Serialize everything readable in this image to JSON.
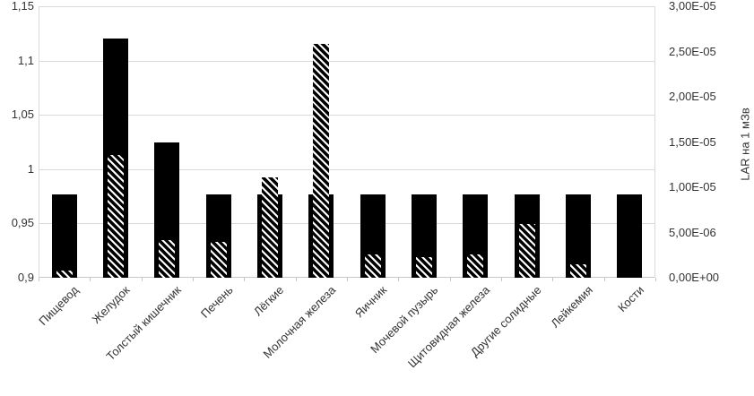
{
  "chart_data": {
    "type": "bar",
    "title": "",
    "categories": [
      "Пищевод",
      "Желудок",
      "Толстый кишечник",
      "Печень",
      "Лёгкие",
      "Молочная железа",
      "Яичник",
      "Мочевой пузырь",
      "Щитовидная железа",
      "Другие солидные",
      "Лейкемия",
      "Кости"
    ],
    "series": [
      {
        "name": "solid-black-bars",
        "axis": "left",
        "style": "solid",
        "values": [
          0.977,
          1.12,
          1.025,
          0.977,
          0.977,
          0.977,
          0.977,
          0.977,
          0.977,
          0.977,
          0.977,
          0.977
        ]
      },
      {
        "name": "diagonal-hatched-bars",
        "axis": "right",
        "style": "diagonal-hatch",
        "values": [
          8e-07,
          1.36e-05,
          4.2e-06,
          4e-06,
          1.11e-05,
          2.58e-05,
          2.6e-06,
          2.3e-06,
          2.6e-06,
          5.9e-06,
          1.5e-06,
          0
        ]
      }
    ],
    "left_axis": {
      "min": 0.9,
      "max": 1.15,
      "step": 0.05,
      "tick_labels": [
        "1,15",
        "1,1",
        "1,05",
        "1",
        "0,95",
        "0,9"
      ]
    },
    "right_axis": {
      "min": 0,
      "max": 3e-05,
      "step": 5e-06,
      "tick_labels": [
        "3,00E-05",
        "2,50E-05",
        "2,00E-05",
        "1,50E-05",
        "1,00E-05",
        "5,00E-06",
        "0,00E+00"
      ],
      "title": "LAR на 1 мЗв"
    },
    "legend": "none",
    "grid": true,
    "colors": {
      "bar": "#000000",
      "grid": "#d9d9d9",
      "axis_line": "#c6c6c6",
      "text": "#333333",
      "background": "#ffffff"
    }
  }
}
